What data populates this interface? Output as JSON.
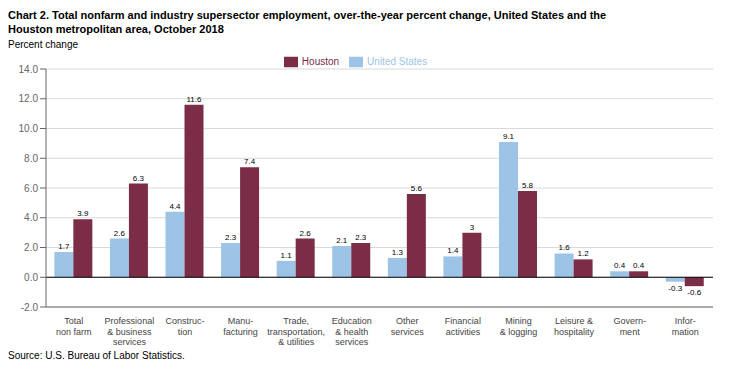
{
  "chart_data": {
    "type": "bar",
    "title": "Chart 2. Total nonfarm and industry supersector employment, over-the-year percent change, United States and the\nHouston metropolitan area, October 2018",
    "ylabel": "Percent change",
    "source": "Source: U.S. Bureau of Labor Statistics.",
    "categories": [
      "Total\nnon farm",
      "Professional\n& business\nservices",
      "Construc-\ntion",
      "Manu-\nfacturing",
      "Trade,\ntransportation,\n& utilities",
      "Education\n& health\nservices",
      "Other\nservices",
      "Financial\nactivities",
      "Mining\n& logging",
      "Leisure &\nhospitality",
      "Govern-\nment",
      "Infor-\nmation"
    ],
    "series": [
      {
        "name": "United States",
        "color": "#9dc3e6",
        "values": [
          1.7,
          2.6,
          4.4,
          2.3,
          1.1,
          2.1,
          1.3,
          1.4,
          9.1,
          1.6,
          0.4,
          -0.3
        ]
      },
      {
        "name": "Houston",
        "color": "#7b2c47",
        "values": [
          3.9,
          6.3,
          11.6,
          7.4,
          2.6,
          2.3,
          5.6,
          3.0,
          5.8,
          1.2,
          0.4,
          -0.6
        ]
      }
    ],
    "ylim": [
      -2.0,
      14.0
    ],
    "yticks": [
      {
        "value": -2.0,
        "label": "-2.0"
      },
      {
        "value": 0.0,
        "label": "0.0"
      },
      {
        "value": 2.0,
        "label": "2.0"
      },
      {
        "value": 4.0,
        "label": "4.0"
      },
      {
        "value": 6.0,
        "label": "6.0"
      },
      {
        "value": 8.0,
        "label": "8.0"
      },
      {
        "value": 10.0,
        "label": "10.0"
      },
      {
        "value": 12.0,
        "label": "12.0"
      },
      {
        "value": 14.0,
        "label": "14.0"
      }
    ],
    "grid": true,
    "legend": "top",
    "data_labels": true
  }
}
